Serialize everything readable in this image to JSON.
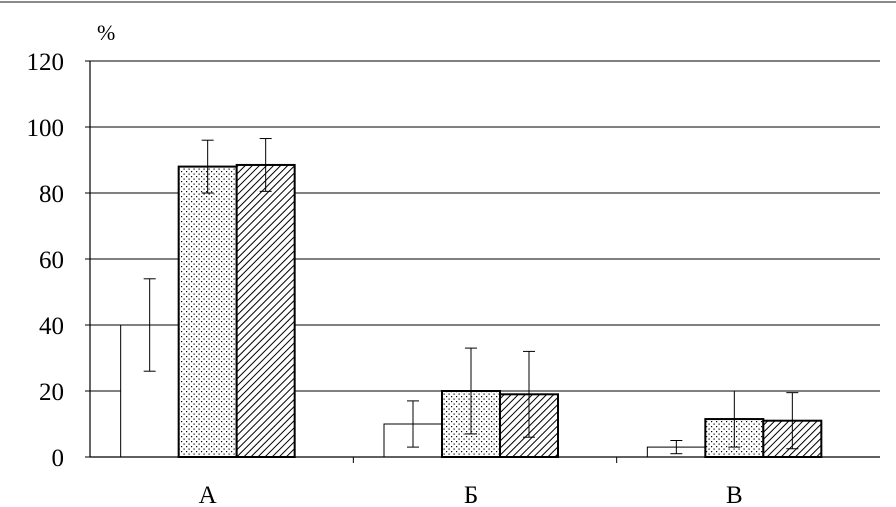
{
  "chart_data": {
    "type": "bar",
    "unit_label": "%",
    "categories": [
      "А",
      "Б",
      "В"
    ],
    "ylim": [
      0,
      120
    ],
    "yticks": [
      0,
      20,
      40,
      60,
      80,
      100,
      120
    ],
    "grid": true,
    "series": [
      {
        "pattern": "blank",
        "fill": "#ffffff",
        "values": [
          40,
          10,
          3
        ],
        "error": [
          14,
          7,
          2
        ]
      },
      {
        "pattern": "dots",
        "fill": "#ffffff",
        "values": [
          88,
          20,
          11.5
        ],
        "error": [
          8,
          13,
          8.5
        ]
      },
      {
        "pattern": "hatch",
        "fill": "#ffffff",
        "values": [
          88.5,
          19,
          11
        ],
        "error": [
          8,
          13,
          8.5
        ]
      }
    ],
    "colors": {
      "axis": "#000000",
      "grid": "#000000",
      "bar_stroke": "#000000",
      "top_rule": "#8a8a8a"
    }
  }
}
